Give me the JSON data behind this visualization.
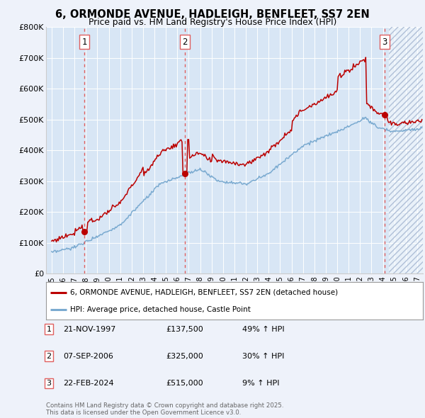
{
  "title_line1": "6, ORMONDE AVENUE, HADLEIGH, BENFLEET, SS7 2EN",
  "title_line2": "Price paid vs. HM Land Registry's House Price Index (HPI)",
  "background_color": "#eef2fa",
  "plot_background": "#d8e6f5",
  "legend_label_red": "6, ORMONDE AVENUE, HADLEIGH, BENFLEET, SS7 2EN (detached house)",
  "legend_label_blue": "HPI: Average price, detached house, Castle Point",
  "footer": "Contains HM Land Registry data © Crown copyright and database right 2025.\nThis data is licensed under the Open Government Licence v3.0.",
  "purchases": [
    {
      "num": 1,
      "date": "21-NOV-1997",
      "price": 137500,
      "hpi_pct": "49% ↑ HPI",
      "year": 1997.88
    },
    {
      "num": 2,
      "date": "07-SEP-2006",
      "price": 325000,
      "hpi_pct": "30% ↑ HPI",
      "year": 2006.68
    },
    {
      "num": 3,
      "date": "22-FEB-2024",
      "price": 515000,
      "hpi_pct": "9% ↑ HPI",
      "year": 2024.13
    }
  ],
  "ylim": [
    0,
    800000
  ],
  "xlim_start": 1994.5,
  "xlim_end": 2027.5,
  "hpi_color": "#7aaad0",
  "price_color": "#bb0000",
  "vline_color": "#e06060",
  "hatch_start": 2024.5,
  "yticks": [
    0,
    100000,
    200000,
    300000,
    400000,
    500000,
    600000,
    700000,
    800000
  ],
  "ylabels": [
    "£0",
    "£100K",
    "£200K",
    "£300K",
    "£400K",
    "£500K",
    "£600K",
    "£700K",
    "£800K"
  ]
}
